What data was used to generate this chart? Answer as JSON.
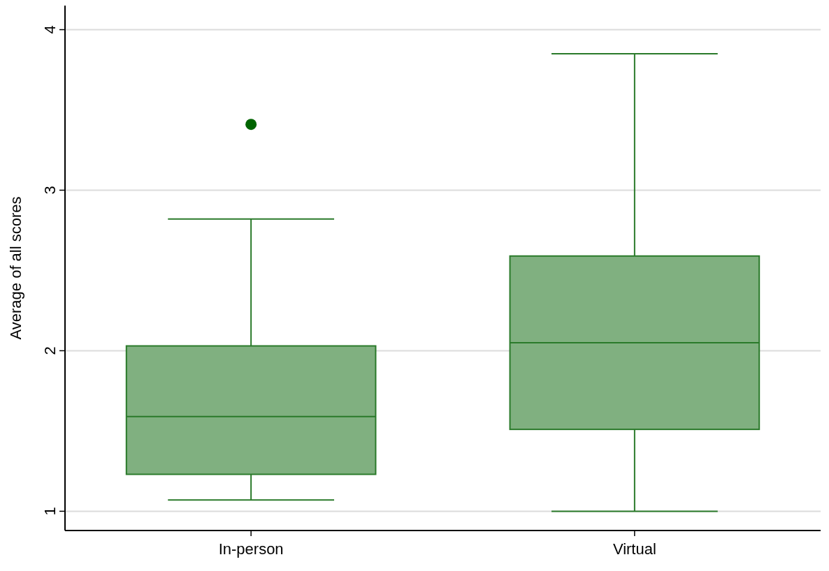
{
  "chart_data": {
    "type": "box",
    "ylabel": "Average of all scores",
    "categories": [
      "In-person",
      "Virtual"
    ],
    "series": [
      {
        "color": "#80b080",
        "boxes": [
          {
            "low": 1.07,
            "q1": 1.23,
            "median": 1.59,
            "q3": 2.03,
            "high": 2.82,
            "outliers": [
              3.41
            ]
          },
          {
            "low": 1.0,
            "q1": 1.51,
            "median": 2.05,
            "q3": 2.59,
            "high": 3.85
          }
        ]
      }
    ],
    "ylim": [
      0.88,
      4.15
    ],
    "yticks": [
      1,
      2,
      3,
      4
    ],
    "grid": "y"
  }
}
